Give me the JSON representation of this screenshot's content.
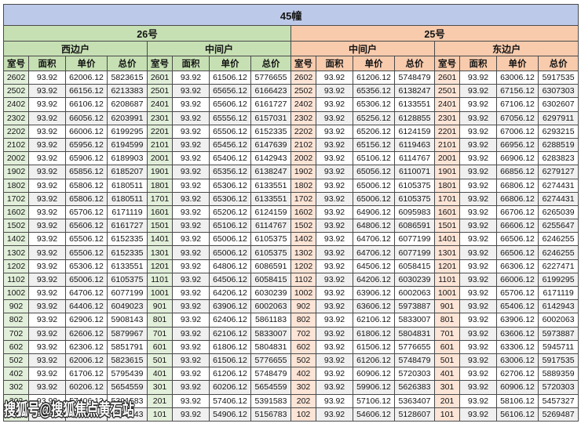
{
  "title": "45幢",
  "watermark": "搜狐号@搜狐焦点黄石站",
  "sections": [
    {
      "label": "26号"
    },
    {
      "label": "25号"
    }
  ],
  "unit_groups": [
    {
      "label": "西边户"
    },
    {
      "label": "中间户"
    },
    {
      "label": "中间户"
    },
    {
      "label": "东边户"
    }
  ],
  "column_headers": [
    "室号",
    "面积",
    "单价",
    "总价"
  ],
  "colors": {
    "title_bg": "#bdc9e8",
    "green_header": "#c6e0b4",
    "green_light": "#e2efda",
    "orange_header": "#f8cbad",
    "orange_light": "#fce4d6",
    "row_alt": "#f0f0f0",
    "border": "#4a4a4a"
  },
  "rows": [
    [
      "2602",
      "93.92",
      "62006.12",
      "5823615",
      "2601",
      "93.92",
      "61506.12",
      "5776655",
      "2602",
      "93.92",
      "61206.12",
      "5748479",
      "2601",
      "93.92",
      "63006.12",
      "5917535"
    ],
    [
      "2502",
      "93.92",
      "66156.12",
      "6213383",
      "2501",
      "93.92",
      "65656.12",
      "6166423",
      "2502",
      "93.92",
      "65356.12",
      "6138247",
      "2501",
      "93.92",
      "67156.12",
      "6307303"
    ],
    [
      "2402",
      "93.92",
      "66106.12",
      "6208687",
      "2401",
      "93.92",
      "65606.12",
      "6161727",
      "2402",
      "93.92",
      "65306.12",
      "6133551",
      "2401",
      "93.92",
      "67106.12",
      "6302607"
    ],
    [
      "2302",
      "93.92",
      "66056.12",
      "6203991",
      "2301",
      "93.92",
      "65556.12",
      "6157031",
      "2302",
      "93.92",
      "65256.12",
      "6128855",
      "2301",
      "93.92",
      "67056.12",
      "6297911"
    ],
    [
      "2202",
      "93.92",
      "66006.12",
      "6199295",
      "2201",
      "93.92",
      "65506.12",
      "6152335",
      "2202",
      "93.92",
      "65206.12",
      "6124159",
      "2201",
      "93.92",
      "67006.12",
      "6293215"
    ],
    [
      "2102",
      "93.92",
      "65956.12",
      "6194599",
      "2101",
      "93.92",
      "65456.12",
      "6147639",
      "2102",
      "93.92",
      "65156.12",
      "6119463",
      "2101",
      "93.92",
      "66956.12",
      "6288519"
    ],
    [
      "2002",
      "93.92",
      "65906.12",
      "6189903",
      "2001",
      "93.92",
      "65406.12",
      "6142943",
      "2002",
      "93.92",
      "65106.12",
      "6114767",
      "2001",
      "93.92",
      "66906.12",
      "6283823"
    ],
    [
      "1902",
      "93.92",
      "65856.12",
      "6185207",
      "1901",
      "93.92",
      "65356.12",
      "6138247",
      "1902",
      "93.92",
      "65056.12",
      "6110071",
      "1901",
      "93.92",
      "66856.12",
      "6279127"
    ],
    [
      "1802",
      "93.92",
      "65806.12",
      "6180511",
      "1801",
      "93.92",
      "65306.12",
      "6133551",
      "1802",
      "93.92",
      "65006.12",
      "6105375",
      "1801",
      "93.92",
      "66806.12",
      "6274431"
    ],
    [
      "1702",
      "93.92",
      "65806.12",
      "6180511",
      "1701",
      "93.92",
      "65306.12",
      "6133551",
      "1702",
      "93.92",
      "65006.12",
      "6105375",
      "1701",
      "93.92",
      "66806.12",
      "6274431"
    ],
    [
      "1602",
      "93.92",
      "65706.12",
      "6171119",
      "1601",
      "93.92",
      "65206.12",
      "6124159",
      "1602",
      "93.92",
      "64906.12",
      "6095983",
      "1601",
      "93.92",
      "66706.12",
      "6265039"
    ],
    [
      "1502",
      "93.92",
      "65606.12",
      "6161727",
      "1501",
      "93.92",
      "65106.12",
      "6114767",
      "1502",
      "93.92",
      "64806.12",
      "6086591",
      "1501",
      "93.92",
      "66606.12",
      "6255647"
    ],
    [
      "1402",
      "93.92",
      "65506.12",
      "6152335",
      "1401",
      "93.92",
      "65006.12",
      "6105375",
      "1402",
      "93.92",
      "64706.12",
      "6077199",
      "1401",
      "93.92",
      "66506.12",
      "6246255"
    ],
    [
      "1302",
      "93.92",
      "65506.12",
      "6152335",
      "1301",
      "93.92",
      "65006.12",
      "6105375",
      "1302",
      "93.92",
      "64706.12",
      "6077199",
      "1301",
      "93.92",
      "66506.12",
      "6246255"
    ],
    [
      "1202",
      "93.92",
      "65306.12",
      "6133551",
      "1201",
      "93.92",
      "64806.12",
      "6086591",
      "1202",
      "93.92",
      "64506.12",
      "6058415",
      "1201",
      "93.92",
      "66306.12",
      "6227471"
    ],
    [
      "1102",
      "93.92",
      "65006.12",
      "6105375",
      "1101",
      "93.92",
      "64506.12",
      "6058415",
      "1102",
      "93.92",
      "64206.12",
      "6030239",
      "1101",
      "93.92",
      "66006.12",
      "6199295"
    ],
    [
      "1002",
      "93.92",
      "64706.12",
      "6077199",
      "1001",
      "93.92",
      "64206.12",
      "6030239",
      "1002",
      "93.92",
      "63906.12",
      "6002063",
      "1001",
      "93.92",
      "65706.12",
      "6171119"
    ],
    [
      "902",
      "93.92",
      "64406.12",
      "6049023",
      "901",
      "93.92",
      "63906.12",
      "6002063",
      "902",
      "93.92",
      "63606.12",
      "5973887",
      "901",
      "93.92",
      "65406.12",
      "6142943"
    ],
    [
      "802",
      "93.92",
      "62906.12",
      "5908143",
      "801",
      "93.92",
      "62406.12",
      "5861183",
      "802",
      "93.92",
      "62106.12",
      "5833007",
      "801",
      "93.92",
      "63906.12",
      "6002063"
    ],
    [
      "702",
      "93.92",
      "62606.12",
      "5879967",
      "701",
      "93.92",
      "62106.12",
      "5833007",
      "702",
      "93.92",
      "61806.12",
      "5804831",
      "701",
      "93.92",
      "63606.12",
      "5973887"
    ],
    [
      "602",
      "93.92",
      "62306.12",
      "5851791",
      "601",
      "93.92",
      "61806.12",
      "5804831",
      "602",
      "93.92",
      "61506.12",
      "5776655",
      "601",
      "93.92",
      "63306.12",
      "5945711"
    ],
    [
      "502",
      "93.92",
      "62006.12",
      "5823615",
      "501",
      "93.92",
      "61506.12",
      "5776655",
      "502",
      "93.92",
      "61206.12",
      "5748479",
      "501",
      "93.92",
      "63006.12",
      "5917535"
    ],
    [
      "402",
      "93.92",
      "61706.12",
      "5795439",
      "401",
      "93.92",
      "61206.12",
      "5748479",
      "402",
      "93.92",
      "60906.12",
      "5720303",
      "401",
      "93.92",
      "62706.12",
      "5889359"
    ],
    [
      "302",
      "93.92",
      "60206.12",
      "5654559",
      "301",
      "93.92",
      "60206.12",
      "5654559",
      "302",
      "93.92",
      "59906.12",
      "5626383",
      "301",
      "93.92",
      "60906.12",
      "5720303"
    ],
    [
      "202",
      "93.92",
      "57406.12",
      "5391583",
      "201",
      "93.92",
      "57406.12",
      "5391583",
      "202",
      "93.92",
      "57106.12",
      "5363407",
      "201",
      "93.92",
      "58106.12",
      "5457327"
    ],
    [
      "102",
      "93.92",
      "55406.12",
      "5203743",
      "101",
      "93.92",
      "54906.12",
      "5156783",
      "102",
      "93.92",
      "54606.12",
      "5128607",
      "101",
      "93.92",
      "56106.12",
      "5269487"
    ]
  ]
}
